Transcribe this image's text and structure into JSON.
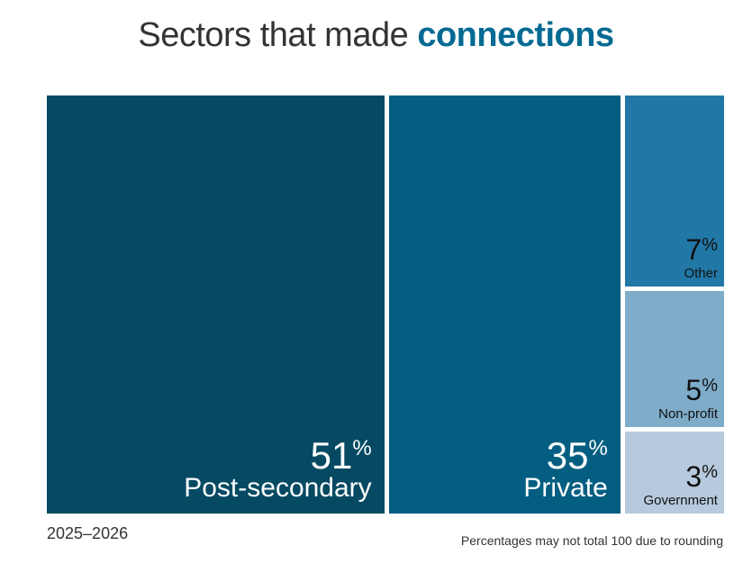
{
  "title": {
    "prefix": "Sectors that made",
    "emphasis": "connections"
  },
  "period": "2025–2026",
  "footnote": "Percentages may not total 100 due to rounding",
  "chart_data": {
    "type": "treemap",
    "title": "Sectors that made connections",
    "unit": "%",
    "categories": [
      "Post-secondary",
      "Private",
      "Other",
      "Non-profit",
      "Government"
    ],
    "values": [
      51,
      35,
      7,
      5,
      3
    ],
    "colors": [
      "#054a62",
      "#035e82",
      "#2178a6",
      "#7eacc9",
      "#b7cadd"
    ],
    "text_colors": [
      "#ffffff",
      "#ffffff",
      "#111111",
      "#111111",
      "#111111"
    ],
    "emphasis_color": "#046a93"
  }
}
